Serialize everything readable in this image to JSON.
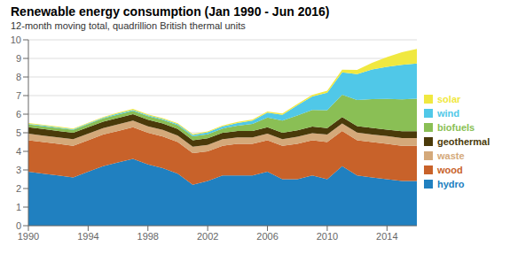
{
  "chart_data": {
    "type": "area",
    "stacked": true,
    "title": "Renewable energy consumption (Jan 1990 - Jun 2016)",
    "subtitle": "12-month moving total, quadrillion British thermal units",
    "x": [
      1990,
      1991,
      1992,
      1993,
      1994,
      1995,
      1996,
      1997,
      1998,
      1999,
      2000,
      2001,
      2002,
      2003,
      2004,
      2005,
      2006,
      2007,
      2008,
      2009,
      2010,
      2011,
      2012,
      2013,
      2014,
      2015,
      2016
    ],
    "xlim": [
      1990,
      2016
    ],
    "xticks": [
      1990,
      1994,
      1998,
      2002,
      2006,
      2010,
      2014
    ],
    "ylim": [
      0,
      10
    ],
    "yticks": [
      0,
      1,
      2,
      3,
      4,
      5,
      6,
      7,
      8,
      9,
      10
    ],
    "grid": true,
    "legend": "right",
    "series": [
      {
        "name": "hydro",
        "color": "#2080c0",
        "values": [
          2.9,
          2.8,
          2.7,
          2.6,
          2.9,
          3.2,
          3.4,
          3.6,
          3.3,
          3.1,
          2.8,
          2.2,
          2.4,
          2.7,
          2.7,
          2.7,
          2.9,
          2.5,
          2.5,
          2.7,
          2.5,
          3.2,
          2.7,
          2.6,
          2.5,
          2.4,
          2.4
        ]
      },
      {
        "name": "wood",
        "color": "#c8622a",
        "values": [
          1.7,
          1.7,
          1.7,
          1.7,
          1.7,
          1.7,
          1.7,
          1.7,
          1.7,
          1.7,
          1.7,
          1.7,
          1.6,
          1.6,
          1.7,
          1.7,
          1.7,
          1.8,
          1.9,
          1.9,
          2.0,
          1.9,
          1.9,
          1.9,
          1.9,
          1.9,
          1.9
        ]
      },
      {
        "name": "waste",
        "color": "#d4a97a",
        "values": [
          0.35,
          0.35,
          0.35,
          0.35,
          0.35,
          0.35,
          0.35,
          0.35,
          0.35,
          0.35,
          0.35,
          0.35,
          0.35,
          0.35,
          0.35,
          0.35,
          0.35,
          0.35,
          0.38,
          0.38,
          0.4,
          0.4,
          0.41,
          0.41,
          0.42,
          0.42,
          0.42
        ]
      },
      {
        "name": "geothermal",
        "color": "#4a3a0a",
        "values": [
          0.35,
          0.35,
          0.35,
          0.35,
          0.35,
          0.35,
          0.35,
          0.35,
          0.35,
          0.35,
          0.35,
          0.35,
          0.35,
          0.35,
          0.35,
          0.35,
          0.35,
          0.35,
          0.35,
          0.35,
          0.35,
          0.35,
          0.35,
          0.35,
          0.35,
          0.36,
          0.36
        ]
      },
      {
        "name": "biofuels",
        "color": "#8abf55",
        "values": [
          0.15,
          0.15,
          0.15,
          0.15,
          0.16,
          0.17,
          0.18,
          0.18,
          0.19,
          0.19,
          0.2,
          0.21,
          0.22,
          0.23,
          0.28,
          0.38,
          0.52,
          0.65,
          0.8,
          0.9,
          0.97,
          1.2,
          1.4,
          1.55,
          1.65,
          1.72,
          1.75
        ]
      },
      {
        "name": "wind",
        "color": "#50c8e8",
        "values": [
          0.03,
          0.04,
          0.04,
          0.04,
          0.04,
          0.04,
          0.05,
          0.05,
          0.05,
          0.05,
          0.06,
          0.07,
          0.1,
          0.11,
          0.14,
          0.18,
          0.26,
          0.32,
          0.55,
          0.72,
          0.94,
          1.2,
          1.4,
          1.6,
          1.73,
          1.85,
          1.9
        ]
      },
      {
        "name": "solar",
        "color": "#f0e840",
        "values": [
          0.04,
          0.04,
          0.04,
          0.04,
          0.04,
          0.04,
          0.05,
          0.05,
          0.05,
          0.05,
          0.05,
          0.05,
          0.05,
          0.05,
          0.06,
          0.06,
          0.06,
          0.07,
          0.07,
          0.08,
          0.1,
          0.14,
          0.22,
          0.35,
          0.52,
          0.68,
          0.78
        ]
      }
    ]
  }
}
